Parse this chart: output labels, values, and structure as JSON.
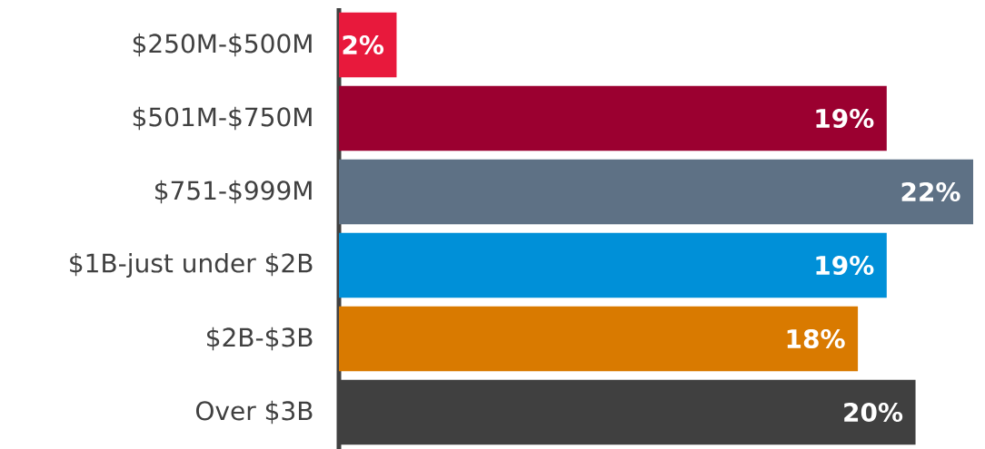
{
  "chart_data": {
    "type": "bar",
    "orientation": "horizontal",
    "categories": [
      "$250M-$500M",
      "$501M-$750M",
      "$751-$999M",
      "$1B-just under $2B",
      "$2B-$3B",
      "Over $3B"
    ],
    "values": [
      2,
      19,
      22,
      19,
      18,
      20
    ],
    "value_labels": [
      "2%",
      "19%",
      "22%",
      "19%",
      "18%",
      "20%"
    ],
    "colors": [
      "#e8193c",
      "#9b0030",
      "#5e7185",
      "#0090d8",
      "#d97a00",
      "#404040"
    ],
    "xlim": [
      0,
      22
    ],
    "tick_labels": "y"
  }
}
